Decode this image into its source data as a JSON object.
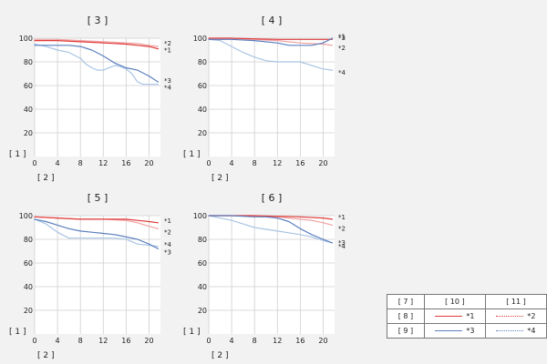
{
  "colors": {
    "red": "#e03a3a",
    "red_light": "#f0a0a0",
    "blue": "#5b7fbf",
    "blue_light": "#a9c4e4",
    "grid": "#cfcfcf",
    "plot_bg": "#ffffff",
    "page_bg": "#f2f2f2"
  },
  "legend": {
    "header": [
      "[ 7 ]",
      "[ 10 ]",
      "[ 11 ]"
    ],
    "rows": [
      {
        "label": "[ 8 ]",
        "left": "*1",
        "right": "*2"
      },
      {
        "label": "[ 9 ]",
        "left": "*3",
        "right": "*4"
      }
    ]
  },
  "chart_data": [
    {
      "type": "line",
      "title": "[ 3 ]",
      "xlabel": "[ 2 ]",
      "ylabel": "[ 1 ]",
      "xlim": [
        0,
        22
      ],
      "ylim": [
        0,
        100
      ],
      "xticks": [
        0,
        4,
        8,
        12,
        16,
        20
      ],
      "yticks": [
        20,
        40,
        60,
        80,
        100
      ],
      "grid": true,
      "series": [
        {
          "name": "*1",
          "color": "red",
          "x": [
            0,
            4,
            8,
            12,
            16,
            18,
            20,
            21.6
          ],
          "y": [
            98,
            98,
            97,
            96,
            95,
            94,
            93,
            91
          ]
        },
        {
          "name": "*2",
          "color": "red_light",
          "x": [
            0,
            4,
            8,
            12,
            16,
            18,
            20,
            21.6
          ],
          "y": [
            99,
            99,
            98,
            97,
            96,
            95.5,
            94,
            93
          ]
        },
        {
          "name": "*3",
          "color": "blue",
          "x": [
            0,
            4,
            6,
            8,
            10,
            12,
            14,
            16,
            18,
            20,
            21.6
          ],
          "y": [
            94,
            94,
            94,
            93,
            90,
            85,
            79,
            75,
            73,
            68,
            63
          ]
        },
        {
          "name": "*4",
          "color": "blue_light",
          "x": [
            0,
            2,
            4,
            6,
            8,
            9,
            10,
            11,
            12,
            14,
            15,
            16,
            17,
            18,
            19,
            20,
            21.6
          ],
          "y": [
            95,
            93,
            90,
            88,
            83,
            78,
            75,
            73,
            73,
            77,
            76,
            74,
            70,
            63,
            61,
            61,
            61
          ]
        }
      ]
    },
    {
      "type": "line",
      "title": "[ 4 ]",
      "xlabel": "[ 2 ]",
      "ylabel": "[ 1 ]",
      "xlim": [
        0,
        22
      ],
      "ylim": [
        0,
        100
      ],
      "xticks": [
        0,
        4,
        8,
        12,
        16,
        20
      ],
      "yticks": [
        20,
        40,
        60,
        80,
        100
      ],
      "grid": true,
      "series": [
        {
          "name": "*1",
          "color": "red",
          "x": [
            0,
            4,
            8,
            12,
            16,
            20,
            21.6
          ],
          "y": [
            100,
            100,
            99.5,
            99,
            99,
            99,
            99
          ]
        },
        {
          "name": "*2",
          "color": "red_light",
          "x": [
            0,
            4,
            8,
            12,
            16,
            20,
            21.6
          ],
          "y": [
            100,
            100,
            99,
            98,
            96,
            95,
            94
          ]
        },
        {
          "name": "*3",
          "color": "blue",
          "x": [
            0,
            4,
            8,
            12,
            14,
            16,
            18,
            20,
            21.6
          ],
          "y": [
            99,
            99,
            98,
            96,
            94,
            94,
            94,
            96,
            100
          ]
        },
        {
          "name": "*4",
          "color": "blue_light",
          "x": [
            0,
            2,
            4,
            6,
            8,
            10,
            12,
            14,
            16,
            18,
            20,
            21.6
          ],
          "y": [
            99,
            98,
            93,
            88,
            84,
            81,
            80,
            80,
            80,
            77,
            74,
            73
          ]
        }
      ]
    },
    {
      "type": "line",
      "title": "[ 5 ]",
      "xlabel": "[ 2 ]",
      "ylabel": "[ 1 ]",
      "xlim": [
        0,
        22
      ],
      "ylim": [
        0,
        100
      ],
      "xticks": [
        0,
        4,
        8,
        12,
        16,
        20
      ],
      "yticks": [
        20,
        40,
        60,
        80,
        100
      ],
      "grid": true,
      "series": [
        {
          "name": "*1",
          "color": "red",
          "x": [
            0,
            4,
            8,
            12,
            16,
            18,
            20,
            21.6
          ],
          "y": [
            99,
            98,
            97,
            97,
            97,
            96,
            95,
            94
          ]
        },
        {
          "name": "*2",
          "color": "red_light",
          "x": [
            0,
            4,
            8,
            12,
            16,
            18,
            20,
            21.6
          ],
          "y": [
            99,
            98,
            97,
            97,
            96,
            94,
            91,
            89
          ]
        },
        {
          "name": "*3",
          "color": "blue",
          "x": [
            0,
            2,
            4,
            6,
            8,
            10,
            12,
            14,
            16,
            18,
            20,
            21.6
          ],
          "y": [
            97,
            95,
            92,
            89,
            87,
            86,
            85,
            84,
            82,
            80,
            76,
            72
          ]
        },
        {
          "name": "*4",
          "color": "blue_light",
          "x": [
            0,
            2,
            4,
            6,
            8,
            10,
            12,
            14,
            16,
            18,
            20,
            21.6
          ],
          "y": [
            97,
            93,
            86,
            81,
            81,
            81,
            81,
            81,
            80,
            76,
            75,
            74
          ]
        }
      ]
    },
    {
      "type": "line",
      "title": "[ 6 ]",
      "xlabel": "[ 2 ]",
      "ylabel": "[ 1 ]",
      "xlim": [
        0,
        22
      ],
      "ylim": [
        0,
        100
      ],
      "xticks": [
        0,
        4,
        8,
        12,
        16,
        20
      ],
      "yticks": [
        20,
        40,
        60,
        80,
        100
      ],
      "grid": true,
      "series": [
        {
          "name": "*1",
          "color": "red",
          "x": [
            0,
            4,
            8,
            12,
            16,
            20,
            21.6
          ],
          "y": [
            100,
            100,
            100,
            99.5,
            99,
            98,
            97
          ]
        },
        {
          "name": "*2",
          "color": "red_light",
          "x": [
            0,
            4,
            8,
            12,
            16,
            18,
            20,
            21.6
          ],
          "y": [
            100,
            100,
            100,
            99,
            97,
            96,
            94,
            92
          ]
        },
        {
          "name": "*3",
          "color": "blue",
          "x": [
            0,
            4,
            8,
            10,
            12,
            14,
            16,
            18,
            20,
            21.6
          ],
          "y": [
            100,
            100,
            99,
            99,
            98,
            95,
            89,
            84,
            80,
            77
          ]
        },
        {
          "name": "*4",
          "color": "blue_light",
          "x": [
            0,
            2,
            4,
            6,
            8,
            12,
            16,
            18,
            20,
            21.6
          ],
          "y": [
            100,
            98,
            96,
            93,
            90,
            87,
            84,
            82,
            79,
            77
          ]
        }
      ]
    }
  ]
}
